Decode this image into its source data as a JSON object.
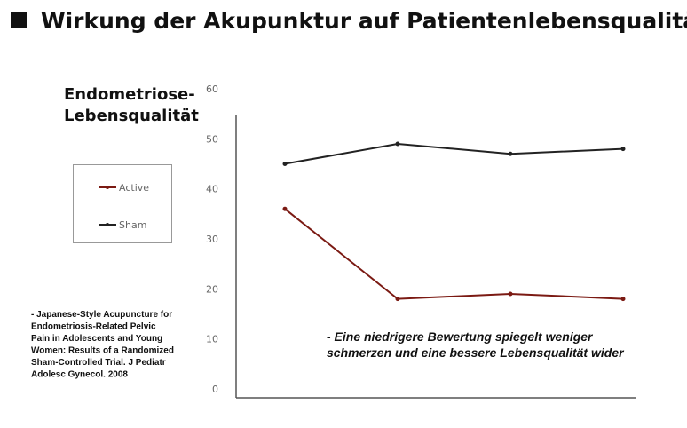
{
  "chart_data": {
    "type": "line",
    "title": "Wirkung der Akupunktur auf Patientenlebensqualität",
    "y_label": [
      "Endometriose-",
      "Lebensqualität"
    ],
    "categories": [
      null,
      null,
      null,
      null
    ],
    "series": [
      {
        "name": "Active",
        "color": "#7b1a13",
        "values": [
          36,
          18,
          19,
          18
        ]
      },
      {
        "name": "Sham",
        "color": "#222222",
        "values": [
          45,
          49,
          47,
          48
        ]
      }
    ],
    "ylim": [
      0,
      60
    ],
    "yticks": [
      0,
      10,
      20,
      30,
      40,
      50,
      60
    ],
    "source": [
      "- Japanese-Style Acupuncture for",
      "Endometriosis-Related Pelvic",
      "Pain in Adolescents and Young",
      "Women: Results of a Randomized",
      "Sham-Controlled Trial. J Pediatr",
      "Adolesc Gynecol. 2008"
    ],
    "annotation": [
      "- Eine niedrigere Bewertung spiegelt weniger",
      "schmerzen und eine bessere Lebensqualität wider"
    ]
  }
}
